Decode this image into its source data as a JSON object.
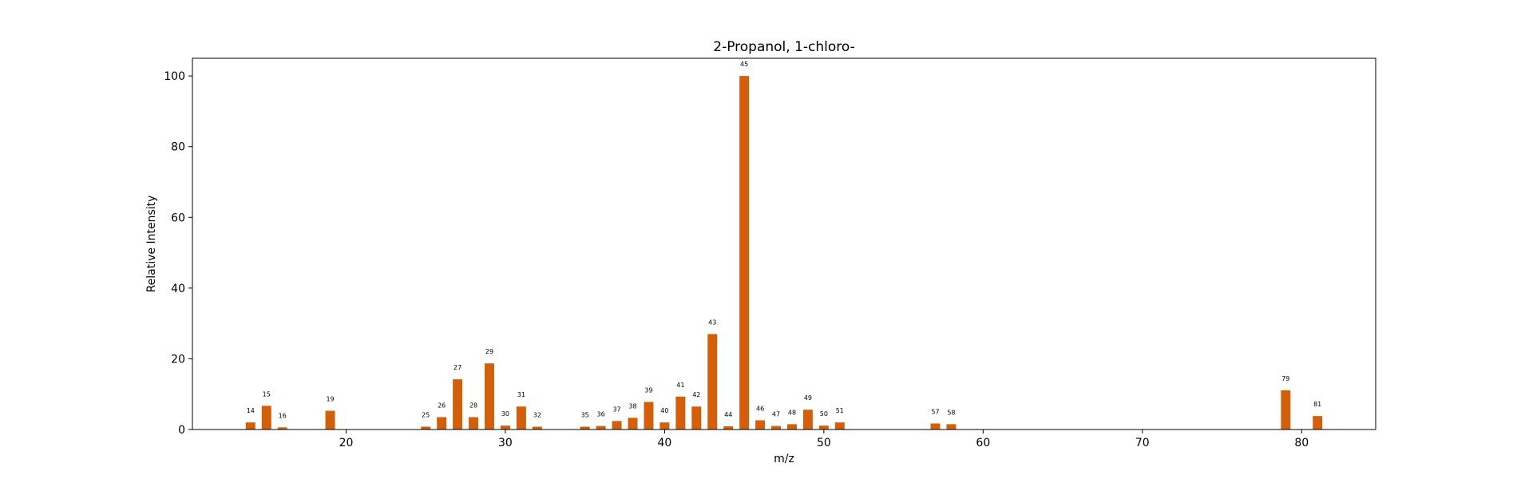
{
  "chart_data": {
    "type": "bar",
    "title": "2-Propanol, 1-chloro-",
    "xlabel": "m/z",
    "ylabel": "Relative Intensity",
    "xlim": [
      10.35,
      84.65
    ],
    "ylim": [
      0,
      105
    ],
    "xticks": [
      20,
      30,
      40,
      50,
      60,
      70,
      80
    ],
    "yticks": [
      0,
      20,
      40,
      60,
      80,
      100
    ],
    "grid": false,
    "bar_color": "#d35f0a",
    "x": [
      14,
      15,
      16,
      19,
      25,
      26,
      27,
      28,
      29,
      30,
      31,
      32,
      35,
      36,
      37,
      38,
      39,
      40,
      41,
      42,
      43,
      44,
      45,
      46,
      47,
      48,
      49,
      50,
      51,
      57,
      58,
      79,
      81
    ],
    "values": [
      2.0,
      6.7,
      0.6,
      5.3,
      0.8,
      3.5,
      14.2,
      3.5,
      18.7,
      1.1,
      6.5,
      0.8,
      0.8,
      1.0,
      2.4,
      3.3,
      7.8,
      2.0,
      9.3,
      6.5,
      27.0,
      0.9,
      100.0,
      2.6,
      1.0,
      1.5,
      5.6,
      1.1,
      2.0,
      1.7,
      1.5,
      11.1,
      3.8
    ],
    "bar_labels": [
      "14",
      "15",
      "16",
      "19",
      "25",
      "26",
      "27",
      "28",
      "29",
      "30",
      "31",
      "32",
      "35",
      "36",
      "37",
      "38",
      "39",
      "40",
      "41",
      "42",
      "43",
      "44",
      "45",
      "46",
      "47",
      "48",
      "49",
      "50",
      "51",
      "57",
      "58",
      "79",
      "81"
    ]
  }
}
